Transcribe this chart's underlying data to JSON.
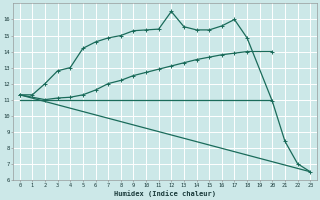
{
  "xlabel": "Humidex (Indice chaleur)",
  "bg_color": "#cce8e8",
  "grid_color": "#ffffff",
  "line_color": "#1a6b5a",
  "xlim": [
    -0.5,
    23.5
  ],
  "ylim": [
    6,
    17
  ],
  "xticks": [
    0,
    1,
    2,
    3,
    4,
    5,
    6,
    7,
    8,
    9,
    10,
    11,
    12,
    13,
    14,
    15,
    16,
    17,
    18,
    19,
    20,
    21,
    22,
    23
  ],
  "yticks": [
    6,
    7,
    8,
    9,
    10,
    11,
    12,
    13,
    14,
    15,
    16
  ],
  "curve1_x": [
    0,
    1,
    2,
    3,
    4,
    5,
    6,
    7,
    8,
    9,
    10,
    11,
    12,
    13,
    14,
    15,
    16,
    17,
    18,
    20,
    21,
    22,
    23
  ],
  "curve1_y": [
    11.3,
    11.3,
    12.0,
    12.8,
    13.0,
    14.2,
    14.6,
    14.85,
    15.0,
    15.3,
    15.35,
    15.4,
    16.5,
    15.55,
    15.35,
    15.35,
    15.6,
    16.0,
    14.85,
    10.9,
    8.4,
    7.0,
    6.5
  ],
  "curve2_x": [
    0,
    2,
    3,
    4,
    5,
    6,
    7,
    8,
    9,
    10,
    11,
    12,
    13,
    14,
    15,
    16,
    17,
    18,
    20
  ],
  "curve2_y": [
    11.3,
    11.0,
    11.1,
    11.15,
    11.3,
    11.6,
    12.0,
    12.2,
    12.5,
    12.7,
    12.9,
    13.1,
    13.3,
    13.5,
    13.65,
    13.8,
    13.9,
    14.0,
    14.0
  ],
  "curve3_x": [
    0,
    23
  ],
  "curve3_y": [
    11.3,
    6.5
  ],
  "hline_x": [
    0,
    20
  ],
  "hline_y": [
    11.0,
    11.0
  ],
  "line_width": 0.9,
  "marker_size": 2.5
}
